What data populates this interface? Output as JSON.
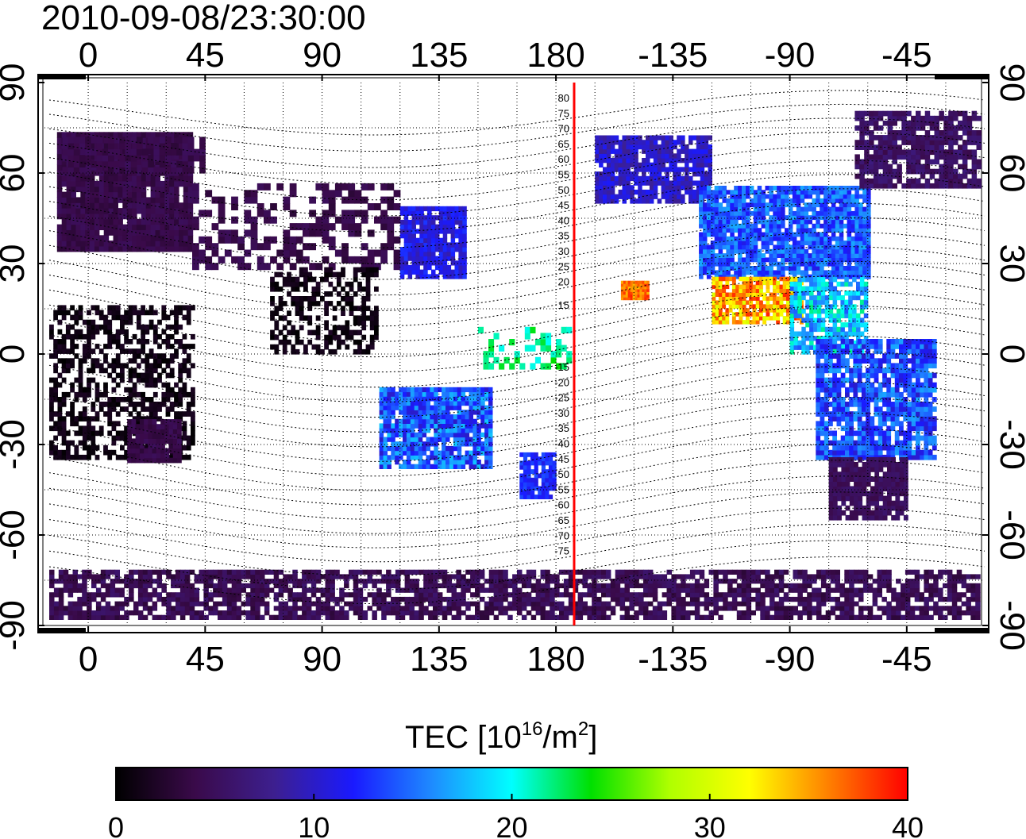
{
  "title": "2010-09-08/23:30:00",
  "map": {
    "lon_ticks": [
      "0",
      "45",
      "90",
      "135",
      "180",
      "-135",
      "-90",
      "-45"
    ],
    "lat_ticks": [
      "90",
      "60",
      "30",
      "0",
      "-30",
      "-60",
      "-90"
    ],
    "lon_tick_values": [
      0,
      45,
      90,
      135,
      180,
      225,
      270,
      315
    ],
    "lat_tick_values": [
      90,
      60,
      30,
      0,
      -30,
      -60,
      -90
    ],
    "meridian_line": {
      "longitude": 187,
      "color": "#ff0000"
    },
    "mag_lat_labels_north": [
      "80",
      "75",
      "70",
      "65",
      "60",
      "55",
      "50",
      "45",
      "40",
      "35",
      "30",
      "25",
      "20",
      "15"
    ],
    "mag_lat_labels_south": [
      "-15",
      "-20",
      "-25",
      "-30",
      "-35",
      "-40",
      "-45",
      "-50",
      "-55",
      "-60",
      "-65",
      "-70",
      "-75"
    ]
  },
  "colorbar": {
    "title_main": "TEC  [10",
    "title_exp": "16",
    "title_mid": "/m",
    "title_exp2": "2",
    "title_end": "]",
    "ticks": [
      "0",
      "10",
      "20",
      "30",
      "40"
    ],
    "range": [
      0,
      40
    ],
    "colors": [
      "#000000",
      "#3a0a4a",
      "#3d1f8f",
      "#1a1aff",
      "#1e8cff",
      "#00ffff",
      "#00e000",
      "#b0ff00",
      "#ffff00",
      "#ff8000",
      "#ff0000"
    ]
  }
}
